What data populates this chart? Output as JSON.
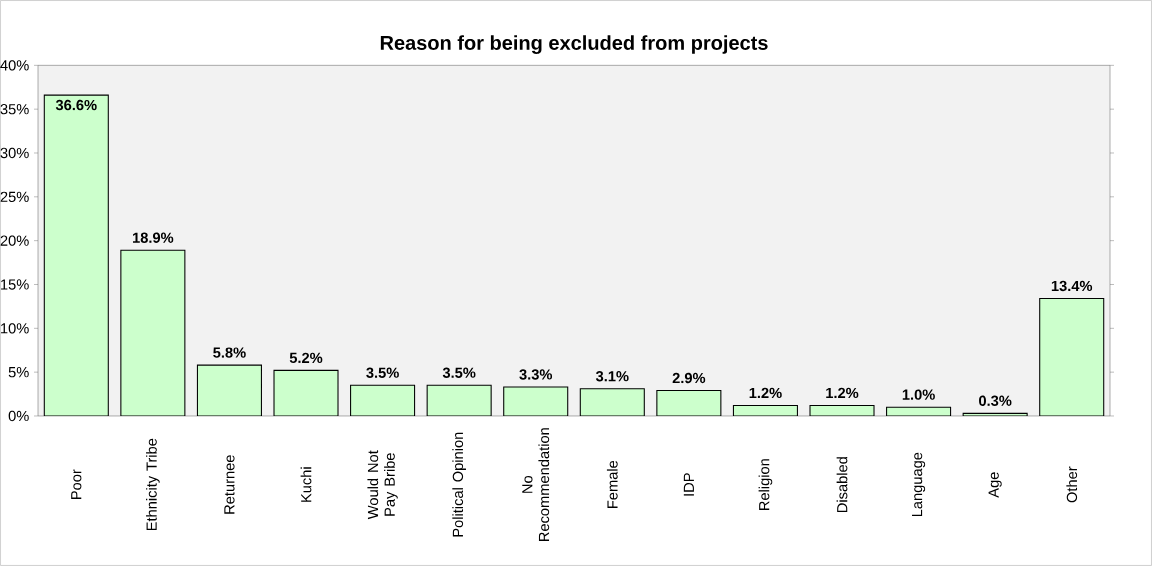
{
  "chart_data": {
    "type": "bar",
    "title": "Reason for being excluded from projects",
    "categories": [
      "Poor",
      "Ethnicity Tribe",
      "Returnee",
      "Kuchi",
      "Would Not Pay Bribe",
      "Political Opinion",
      "No Recommendation",
      "Female",
      "IDP",
      "Religion",
      "Disabled",
      "Language",
      "Age",
      "Other"
    ],
    "values": [
      36.6,
      18.9,
      5.8,
      5.2,
      3.5,
      3.5,
      3.3,
      3.1,
      2.9,
      1.2,
      1.2,
      1.0,
      0.3,
      13.4
    ],
    "value_labels": [
      "36.6%",
      "18.9%",
      "5.8%",
      "5.2%",
      "3.5%",
      "3.5%",
      "3.3%",
      "3.1%",
      "2.9%",
      "1.2%",
      "1.2%",
      "1.0%",
      "0.3%",
      "13.4%"
    ],
    "color": "#ccffcc",
    "ylim": [
      0,
      40
    ],
    "yticks": [
      {
        "value": 0,
        "label": "0%"
      },
      {
        "value": 5,
        "label": "5%"
      },
      {
        "value": 10,
        "label": "10%"
      },
      {
        "value": 15,
        "label": "15%"
      },
      {
        "value": 20,
        "label": "20%"
      },
      {
        "value": 25,
        "label": "25%"
      },
      {
        "value": 30,
        "label": "30%"
      },
      {
        "value": 35,
        "label": "35%"
      },
      {
        "value": 40,
        "label": "40%"
      }
    ]
  }
}
